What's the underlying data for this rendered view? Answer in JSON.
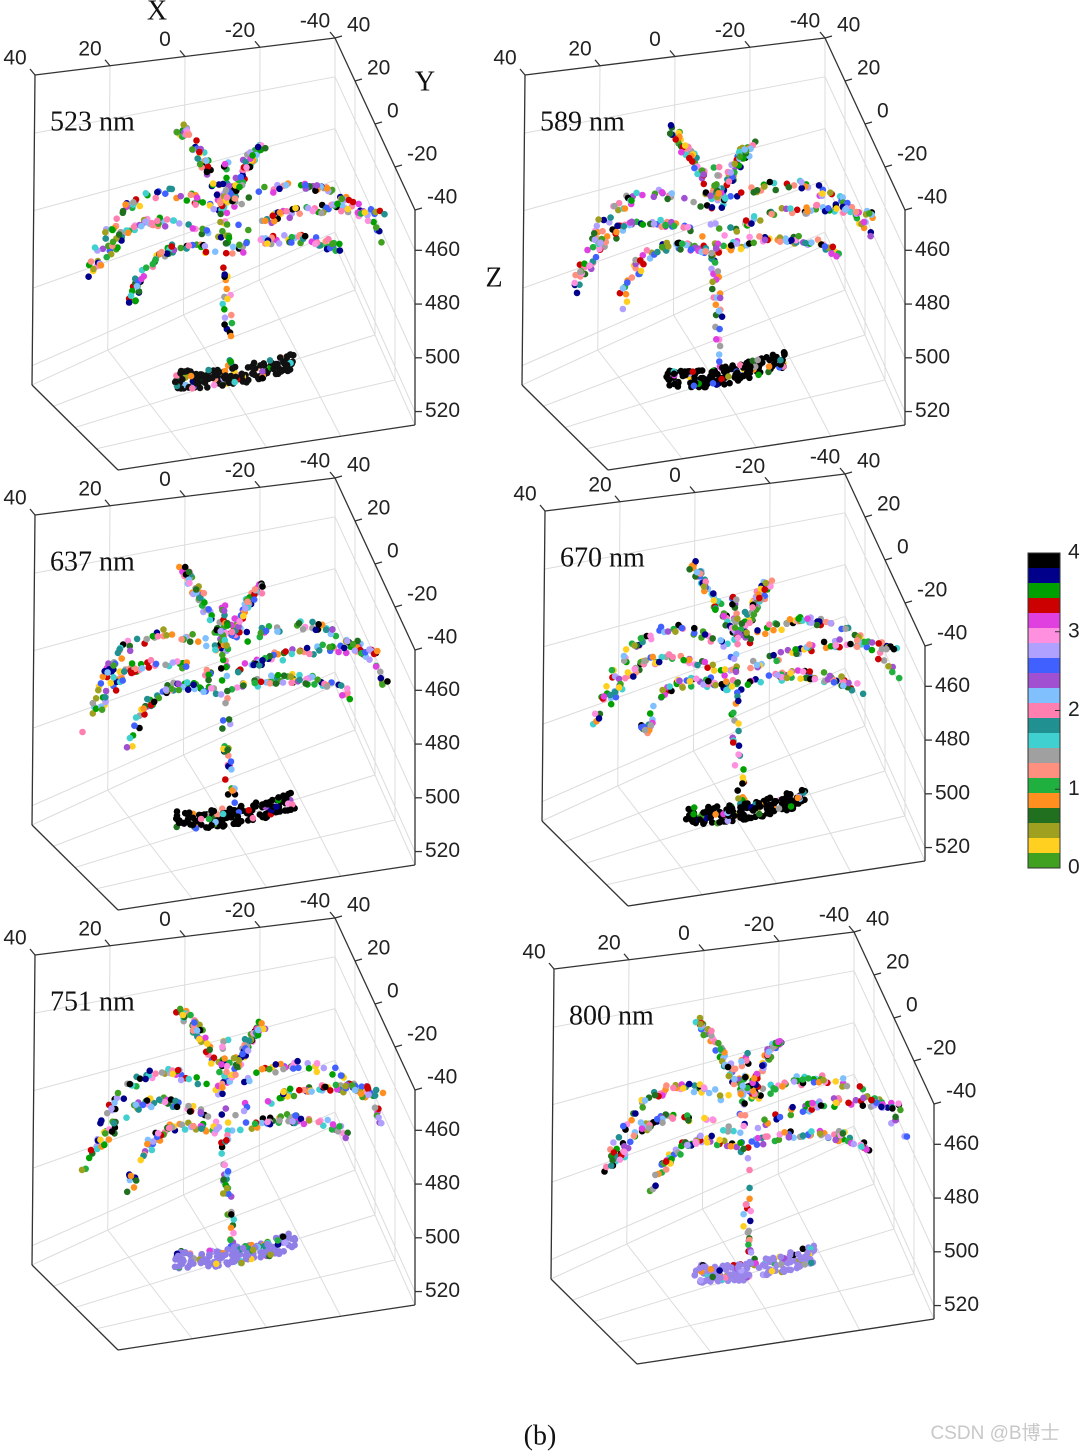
{
  "chart_data": [
    {
      "type": "scatter3d",
      "title": "523 nm",
      "xlabel": "X",
      "ylabel": "Y",
      "zlabel": "Z",
      "xlim": [
        40,
        -40
      ],
      "ylim": [
        40,
        -40
      ],
      "zlim": [
        445,
        525
      ],
      "xticks": [
        40,
        20,
        0,
        -20,
        -40
      ],
      "yticks": [
        40,
        20,
        0,
        -20,
        -40
      ],
      "zticks": [
        460,
        480,
        500,
        520
      ],
      "grid": true,
      "base_color": "#111111"
    },
    {
      "type": "scatter3d",
      "title": "589 nm",
      "xlim": [
        40,
        -40
      ],
      "ylim": [
        40,
        -40
      ],
      "zlim": [
        445,
        525
      ],
      "xticks": [
        40,
        20,
        0,
        -20,
        -40
      ],
      "yticks": [
        40,
        20,
        0,
        -20,
        -40
      ],
      "zticks": [
        460,
        480,
        500,
        520
      ],
      "grid": true,
      "base_color": "#000000"
    },
    {
      "type": "scatter3d",
      "title": "637 nm",
      "xlim": [
        40,
        -40
      ],
      "ylim": [
        40,
        -40
      ],
      "zlim": [
        445,
        525
      ],
      "xticks": [
        40,
        20,
        0,
        -20,
        -40
      ],
      "yticks": [
        40,
        20,
        0,
        -20,
        -40
      ],
      "zticks": [
        460,
        480,
        500,
        520
      ],
      "grid": true,
      "base_color": "#000000"
    },
    {
      "type": "scatter3d",
      "title": "670 nm",
      "xlim": [
        40,
        -40
      ],
      "ylim": [
        40,
        -40
      ],
      "zlim": [
        445,
        525
      ],
      "xticks": [
        40,
        20,
        0,
        -20,
        -40
      ],
      "yticks": [
        40,
        20,
        0,
        -20,
        -40
      ],
      "zticks": [
        460,
        480,
        500,
        520
      ],
      "grid": true,
      "base_color": "#000000"
    },
    {
      "type": "scatter3d",
      "title": "751 nm",
      "xlim": [
        40,
        -40
      ],
      "ylim": [
        40,
        -40
      ],
      "zlim": [
        445,
        525
      ],
      "xticks": [
        40,
        20,
        0,
        -20,
        -40
      ],
      "yticks": [
        40,
        20,
        0,
        -20,
        -40
      ],
      "zticks": [
        460,
        480,
        500,
        520
      ],
      "grid": true,
      "base_color": "#8f7ee6"
    },
    {
      "type": "scatter3d",
      "title": "800 nm",
      "xlim": [
        40,
        -40
      ],
      "ylim": [
        40,
        -40
      ],
      "zlim": [
        445,
        525
      ],
      "xticks": [
        40,
        20,
        0,
        -20,
        -40
      ],
      "yticks": [
        40,
        20,
        0,
        -20,
        -40
      ],
      "zticks": [
        460,
        480,
        500,
        520
      ],
      "grid": true,
      "base_color": "#9a86ea"
    }
  ],
  "colorbar": {
    "ylim": [
      0,
      4
    ],
    "ticks": [
      4,
      3,
      2,
      1,
      0
    ],
    "colors": [
      "#000000",
      "#00008b",
      "#00a000",
      "#cc0000",
      "#e040e0",
      "#ff90e0",
      "#b0a0ff",
      "#4060ff",
      "#a050d0",
      "#80c0ff",
      "#ff80b0",
      "#209090",
      "#40d0d0",
      "#a0a0a0",
      "#ff9080",
      "#20b040",
      "#ff9020",
      "#207020",
      "#a0a020",
      "#ffd020",
      "#40a020"
    ]
  },
  "caption": "(b)",
  "watermark": "CSDN @B博士"
}
